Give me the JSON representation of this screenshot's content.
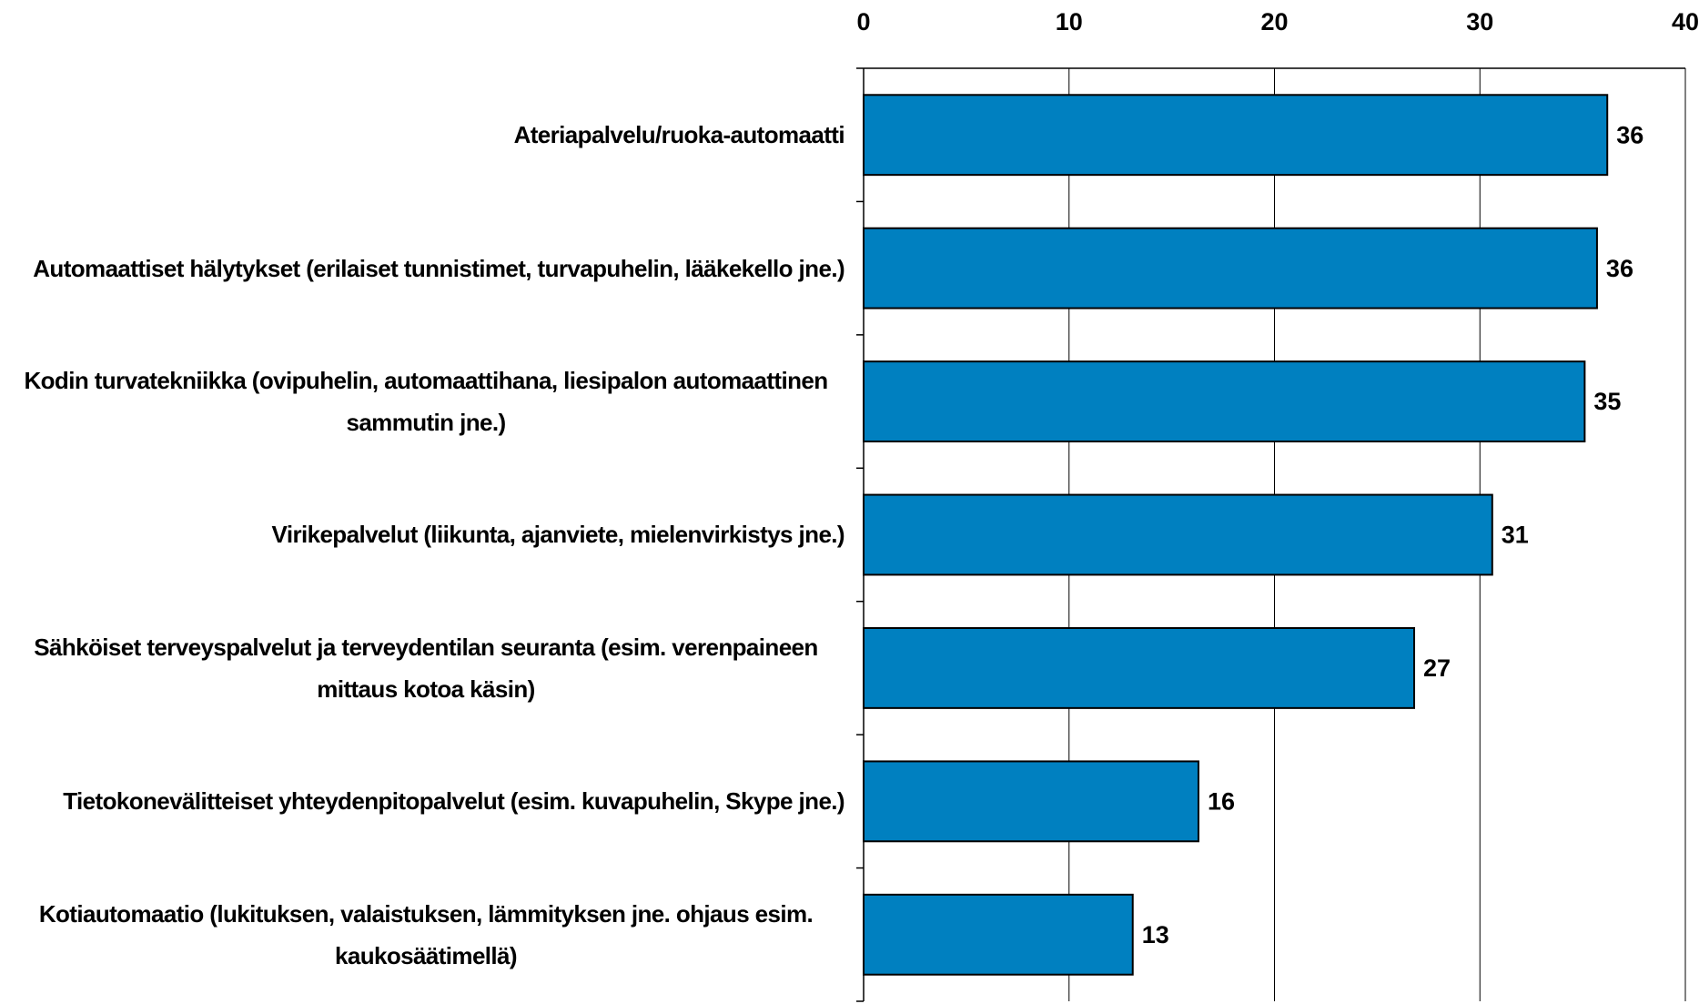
{
  "chart_data": {
    "type": "bar",
    "orientation": "horizontal",
    "categories": [
      "Ateriapalvelu/ruoka-automaatti",
      "Automaattiset hälytykset (erilaiset tunnistimet, turvapuhelin, lääkekello jne.)",
      "Kodin turvatekniikka (ovipuhelin, automaattihana, liesipalon automaattinen sammutin jne.)",
      "Virikepalvelut (liikunta, ajanviete, mielenvirkistys jne.)",
      "Sähköiset terveyspalvelut ja terveydentilan seuranta (esim. verenpaineen mittaus kotoa käsin)",
      "Tietokonevälitteiset yhteydenpitopalvelut (esim. kuvapuhelin, Skype jne.)",
      "Kotiautomaatio (lukituksen, valaistuksen, lämmityksen jne. ohjaus esim. kaukosäätimellä)"
    ],
    "values": [
      36.2,
      35.7,
      35.1,
      30.6,
      26.8,
      16.3,
      13.1
    ],
    "value_labels": [
      "36",
      "36",
      "35",
      "31",
      "27",
      "16",
      "13"
    ],
    "color": "#0080c0",
    "xlim": [
      0,
      40
    ],
    "xticks": [
      0,
      10,
      20,
      30,
      40
    ],
    "grid": true
  }
}
